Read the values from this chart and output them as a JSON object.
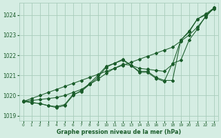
{
  "title": "Graphe pression niveau de la mer (hPa)",
  "bg_color": "#d5ede3",
  "grid_color": "#a8ccbb",
  "line_color": "#1a5c2a",
  "xlim": [
    -0.5,
    23.5
  ],
  "ylim": [
    1018.75,
    1024.6
  ],
  "yticks": [
    1019,
    1020,
    1021,
    1022,
    1023,
    1024
  ],
  "xticks": [
    0,
    1,
    2,
    3,
    4,
    5,
    6,
    7,
    8,
    9,
    10,
    11,
    12,
    13,
    14,
    15,
    16,
    17,
    18,
    19,
    20,
    21,
    22,
    23
  ],
  "series": [
    {
      "x": [
        0,
        1,
        2,
        3,
        4,
        5,
        6,
        7,
        8,
        9,
        10,
        11,
        12,
        13,
        14,
        15,
        16,
        17,
        18,
        19,
        20,
        21,
        22,
        23
      ],
      "y": [
        1019.7,
        1019.85,
        1020.0,
        1020.15,
        1020.3,
        1020.45,
        1020.6,
        1020.75,
        1020.9,
        1021.05,
        1021.2,
        1021.35,
        1021.5,
        1021.65,
        1021.8,
        1021.95,
        1022.1,
        1022.25,
        1022.4,
        1022.7,
        1023.0,
        1023.4,
        1023.9,
        1024.35
      ]
    },
    {
      "x": [
        0,
        1,
        2,
        3,
        4,
        5,
        6,
        7,
        8,
        9,
        10,
        11,
        12,
        13,
        14,
        15,
        16,
        17,
        18,
        19,
        20,
        21,
        22,
        23
      ],
      "y": [
        1019.7,
        1019.75,
        1019.8,
        1019.85,
        1019.9,
        1020.0,
        1020.15,
        1020.3,
        1020.55,
        1020.8,
        1021.1,
        1021.35,
        1021.55,
        1021.5,
        1021.35,
        1021.3,
        1021.25,
        1021.2,
        1021.55,
        1022.75,
        1023.2,
        1023.8,
        1024.05,
        1024.35
      ]
    },
    {
      "x": [
        0,
        1,
        2,
        3,
        4,
        5,
        6,
        7,
        8,
        9,
        10,
        11,
        12,
        13,
        14,
        15,
        16,
        17,
        18,
        19,
        20,
        21,
        22,
        23
      ],
      "y": [
        1019.7,
        1019.65,
        1019.6,
        1019.5,
        1019.45,
        1019.55,
        1020.05,
        1020.2,
        1020.55,
        1020.9,
        1021.4,
        1021.6,
        1021.75,
        1021.5,
        1021.2,
        1021.2,
        1020.9,
        1020.75,
        1020.75,
        1022.75,
        1023.15,
        1023.8,
        1024.0,
        1024.3
      ]
    },
    {
      "x": [
        0,
        1,
        2,
        3,
        4,
        5,
        6,
        7,
        8,
        9,
        10,
        11,
        12,
        13,
        14,
        15,
        16,
        17,
        18,
        19,
        20,
        21,
        22,
        23
      ],
      "y": [
        1019.75,
        1019.65,
        1019.6,
        1019.5,
        1019.4,
        1019.5,
        1020.0,
        1020.25,
        1020.6,
        1021.0,
        1021.45,
        1021.6,
        1021.8,
        1021.5,
        1021.15,
        1021.15,
        1020.85,
        1020.7,
        1021.6,
        1021.75,
        1022.75,
        1023.3,
        1023.95,
        1024.35
      ]
    }
  ]
}
